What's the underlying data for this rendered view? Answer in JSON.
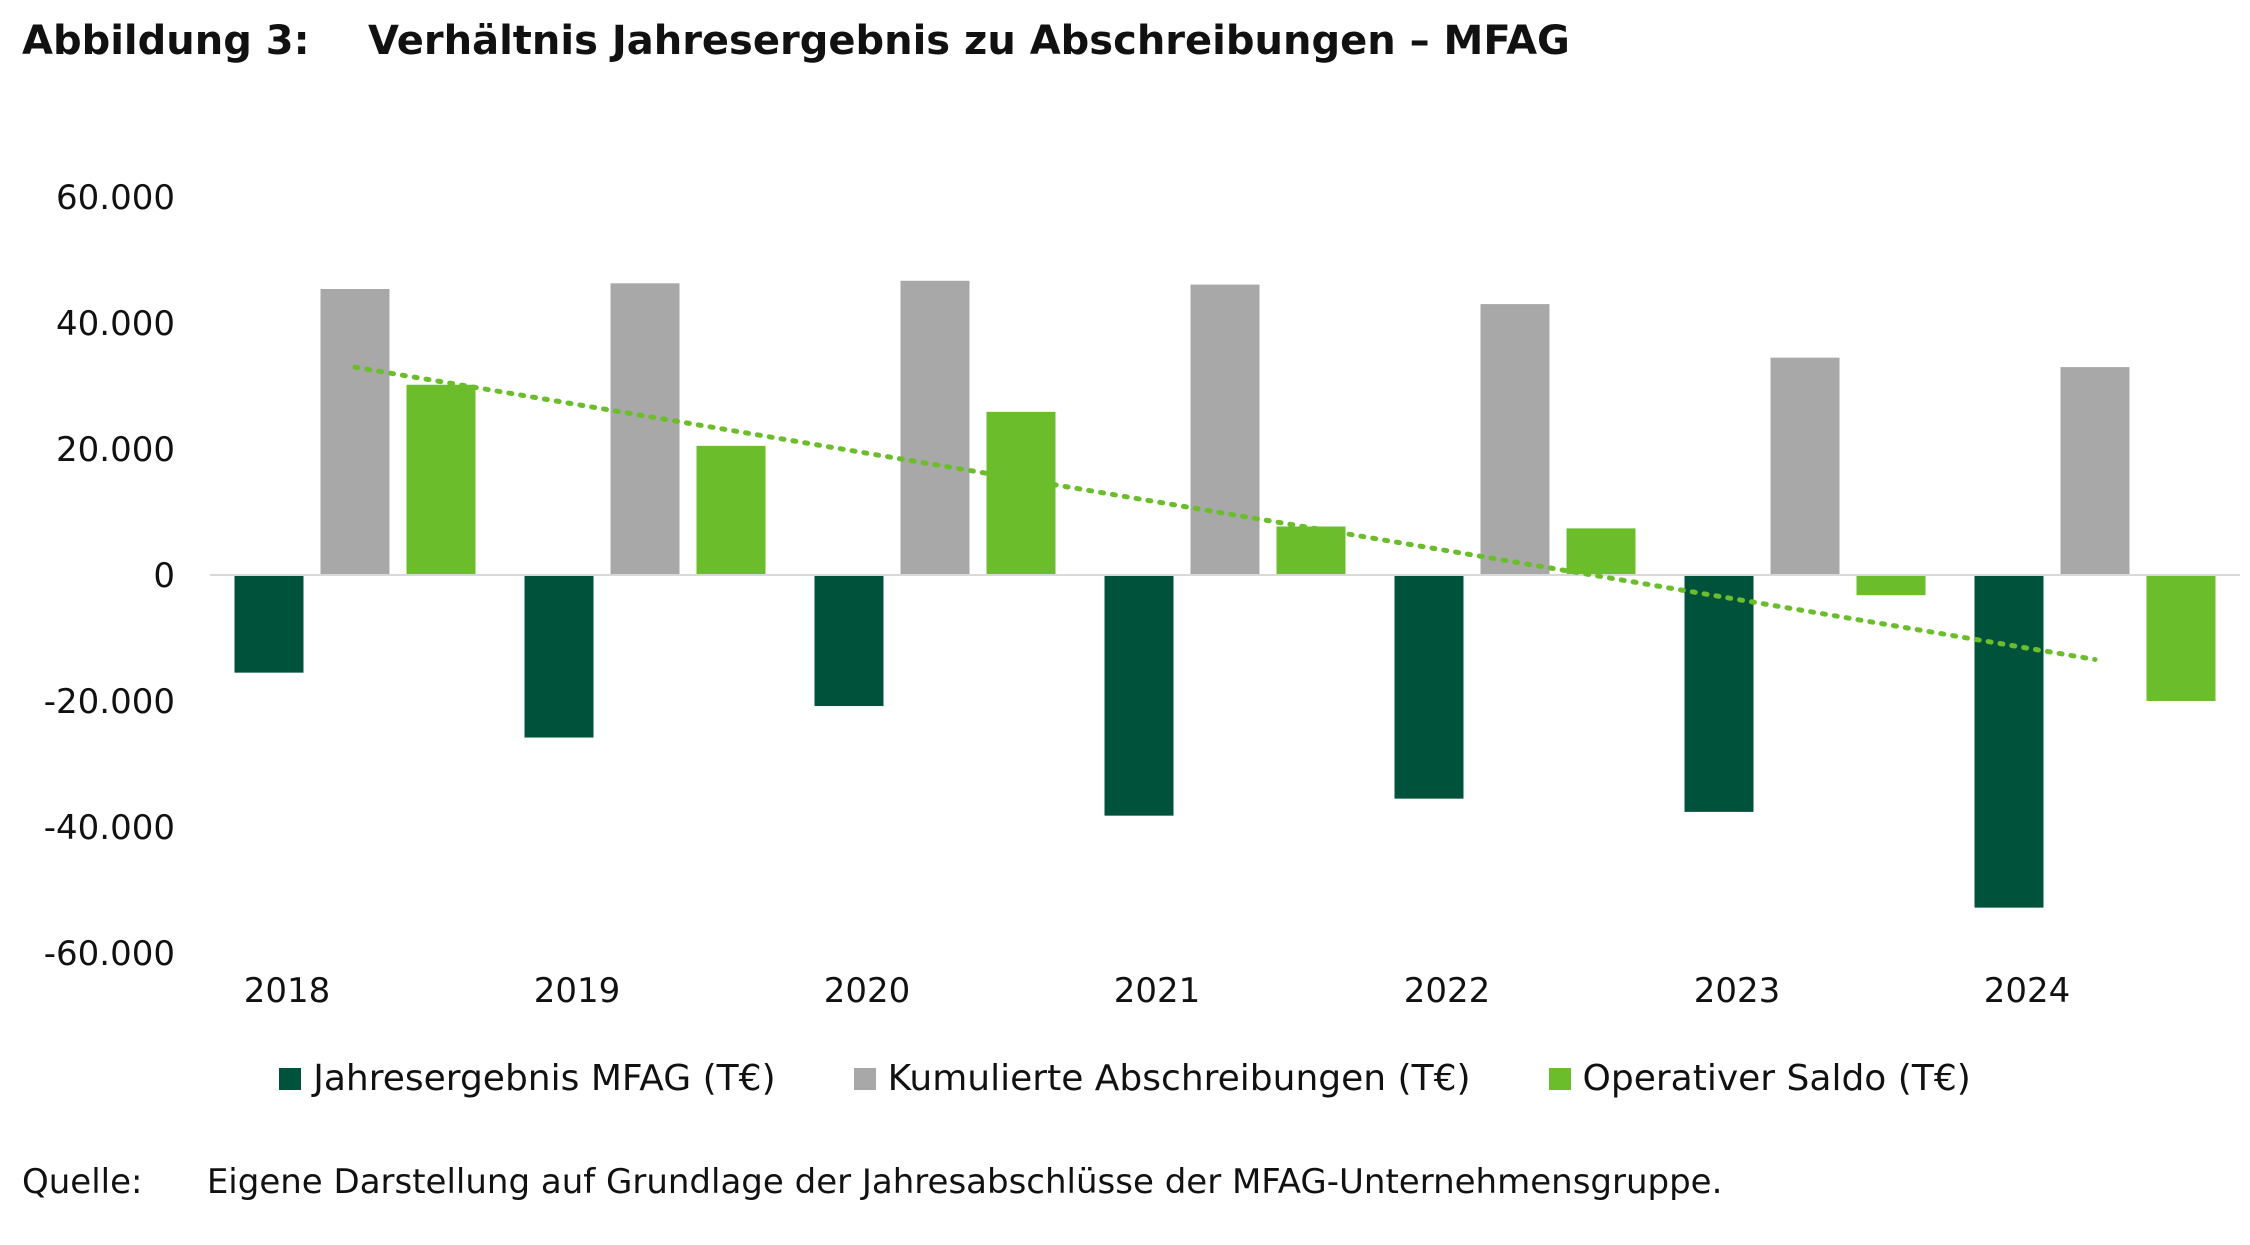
{
  "figure": {
    "label": "Abbildung 3:",
    "title": "Verhältnis Jahresergebnis zu Abschreibungen – MFAG"
  },
  "source": {
    "label": "Quelle:",
    "text": "Eigene Darstellung auf Grundlage der Jahresabschlüsse der MFAG-Unternehmensgruppe."
  },
  "chart_data": {
    "type": "bar",
    "categories": [
      "2018",
      "2019",
      "2020",
      "2021",
      "2022",
      "2023",
      "2024"
    ],
    "series": [
      {
        "name": "Jahresergebnis MFAG (T€)",
        "color": "#00533a",
        "values": [
          -15500,
          -25800,
          -20800,
          -38200,
          -35500,
          -37600,
          -52800
        ]
      },
      {
        "name": "Kumulierte Abschreibungen (T€)",
        "color": "#a8a8a8",
        "values": [
          45400,
          46300,
          46700,
          46100,
          43000,
          34500,
          33000
        ]
      },
      {
        "name": "Operativer Saldo (T€)",
        "color": "#6bbd2c",
        "values": [
          30200,
          20500,
          25900,
          7700,
          7400,
          -3200,
          -20000
        ]
      }
    ],
    "trendline": {
      "series": "Operativer Saldo (T€)",
      "type": "linear",
      "style": "dotted",
      "color": "#6bbd2c"
    },
    "ylim": [
      -60000,
      60000
    ],
    "yticks": [
      60000,
      40000,
      20000,
      0,
      -20000,
      -40000,
      -60000
    ],
    "ytick_labels": [
      "60.000",
      "40.000",
      "20.000",
      "0",
      "-20.000",
      "-40.000",
      "-60.000"
    ],
    "grid": false,
    "legend": "bottom",
    "xlabel": "",
    "ylabel": ""
  }
}
